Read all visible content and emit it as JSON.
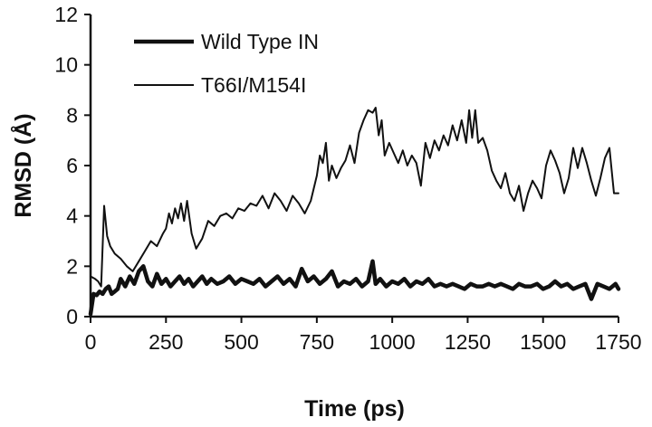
{
  "chart_data": {
    "type": "line",
    "title": "",
    "xlabel": "Time (ps)",
    "ylabel": "RMSD (Å)",
    "xlim": [
      0,
      1750
    ],
    "ylim": [
      0,
      12
    ],
    "xticks": [
      0,
      250,
      500,
      750,
      1000,
      1250,
      1500,
      1750
    ],
    "yticks": [
      0,
      2,
      4,
      6,
      8,
      10,
      12
    ],
    "xtick_labels": [
      "0",
      "250",
      "500",
      "750",
      "1000",
      "1250",
      "1500",
      "1750"
    ],
    "ytick_labels": [
      "0",
      "2",
      "4",
      "6",
      "8",
      "10",
      "12"
    ],
    "grid": false,
    "legend_position": "top-left",
    "series": [
      {
        "name": "Wild Type IN",
        "color": "#111111",
        "line_weight": "thick",
        "x": [
          0,
          10,
          20,
          30,
          40,
          50,
          60,
          70,
          80,
          90,
          100,
          115,
          130,
          145,
          160,
          175,
          190,
          205,
          220,
          235,
          250,
          265,
          280,
          295,
          310,
          325,
          340,
          355,
          370,
          385,
          400,
          420,
          440,
          460,
          480,
          500,
          520,
          540,
          560,
          580,
          600,
          620,
          640,
          660,
          680,
          700,
          720,
          740,
          760,
          780,
          800,
          820,
          840,
          860,
          880,
          900,
          920,
          935,
          945,
          960,
          980,
          1000,
          1020,
          1040,
          1060,
          1080,
          1100,
          1120,
          1140,
          1160,
          1180,
          1200,
          1220,
          1240,
          1260,
          1280,
          1300,
          1320,
          1340,
          1360,
          1380,
          1400,
          1420,
          1440,
          1460,
          1480,
          1500,
          1520,
          1540,
          1560,
          1580,
          1600,
          1620,
          1640,
          1660,
          1680,
          1700,
          1720,
          1740,
          1750
        ],
        "values": [
          0.1,
          0.9,
          0.85,
          1.0,
          0.9,
          1.1,
          1.2,
          0.9,
          1.0,
          1.1,
          1.5,
          1.2,
          1.6,
          1.3,
          1.8,
          2.0,
          1.4,
          1.2,
          1.7,
          1.3,
          1.5,
          1.2,
          1.4,
          1.6,
          1.3,
          1.5,
          1.2,
          1.4,
          1.6,
          1.3,
          1.5,
          1.3,
          1.4,
          1.6,
          1.3,
          1.5,
          1.4,
          1.3,
          1.5,
          1.2,
          1.4,
          1.6,
          1.3,
          1.5,
          1.2,
          1.9,
          1.4,
          1.6,
          1.3,
          1.5,
          1.8,
          1.2,
          1.4,
          1.3,
          1.5,
          1.2,
          1.4,
          2.2,
          1.3,
          1.5,
          1.2,
          1.4,
          1.3,
          1.5,
          1.2,
          1.4,
          1.3,
          1.5,
          1.2,
          1.3,
          1.2,
          1.3,
          1.2,
          1.1,
          1.3,
          1.2,
          1.2,
          1.3,
          1.2,
          1.3,
          1.2,
          1.1,
          1.3,
          1.2,
          1.2,
          1.3,
          1.1,
          1.2,
          1.4,
          1.2,
          1.3,
          1.1,
          1.2,
          1.3,
          0.7,
          1.3,
          1.2,
          1.1,
          1.3,
          1.1
        ]
      },
      {
        "name": "T66I/M154I",
        "color": "#111111",
        "line_weight": "thin",
        "x": [
          0,
          15,
          25,
          35,
          45,
          55,
          65,
          80,
          100,
          120,
          140,
          160,
          180,
          200,
          220,
          240,
          250,
          260,
          270,
          280,
          290,
          300,
          310,
          320,
          335,
          350,
          370,
          390,
          410,
          430,
          450,
          470,
          490,
          510,
          530,
          550,
          570,
          590,
          610,
          630,
          650,
          670,
          690,
          710,
          730,
          750,
          760,
          770,
          780,
          790,
          800,
          815,
          830,
          845,
          860,
          875,
          890,
          905,
          920,
          935,
          945,
          955,
          965,
          975,
          990,
          1005,
          1020,
          1035,
          1050,
          1065,
          1080,
          1095,
          1110,
          1125,
          1140,
          1155,
          1170,
          1185,
          1200,
          1215,
          1230,
          1245,
          1255,
          1265,
          1275,
          1285,
          1300,
          1315,
          1330,
          1345,
          1360,
          1375,
          1390,
          1405,
          1420,
          1435,
          1450,
          1465,
          1480,
          1495,
          1510,
          1525,
          1540,
          1555,
          1570,
          1585,
          1600,
          1615,
          1630,
          1645,
          1660,
          1675,
          1690,
          1705,
          1720,
          1735,
          1750
        ],
        "values": [
          1.6,
          1.5,
          1.4,
          1.2,
          4.4,
          3.2,
          2.8,
          2.5,
          2.3,
          2.0,
          1.8,
          2.2,
          2.6,
          3.0,
          2.8,
          3.3,
          3.5,
          4.1,
          3.7,
          4.3,
          3.9,
          4.5,
          3.8,
          4.6,
          3.3,
          2.7,
          3.1,
          3.8,
          3.6,
          4.0,
          4.1,
          3.9,
          4.3,
          4.2,
          4.5,
          4.4,
          4.8,
          4.3,
          4.9,
          4.6,
          4.2,
          4.8,
          4.5,
          4.1,
          4.6,
          5.6,
          6.4,
          6.1,
          6.9,
          5.4,
          6.0,
          5.5,
          5.9,
          6.2,
          6.8,
          6.1,
          7.3,
          7.8,
          8.2,
          8.1,
          8.3,
          7.2,
          7.8,
          6.4,
          6.9,
          6.5,
          6.1,
          6.6,
          6.0,
          6.4,
          6.1,
          5.2,
          6.9,
          6.3,
          7.0,
          6.6,
          7.2,
          6.8,
          7.6,
          7.0,
          7.8,
          6.9,
          8.2,
          7.1,
          8.2,
          6.9,
          7.1,
          6.6,
          5.8,
          5.4,
          5.1,
          5.7,
          4.9,
          4.6,
          5.2,
          4.2,
          4.9,
          5.4,
          5.1,
          4.7,
          6.0,
          6.6,
          6.2,
          5.7,
          4.9,
          5.5,
          6.7,
          5.9,
          6.7,
          6.1,
          5.4,
          4.8,
          5.5,
          6.3,
          6.7,
          4.9,
          4.9
        ]
      }
    ]
  }
}
